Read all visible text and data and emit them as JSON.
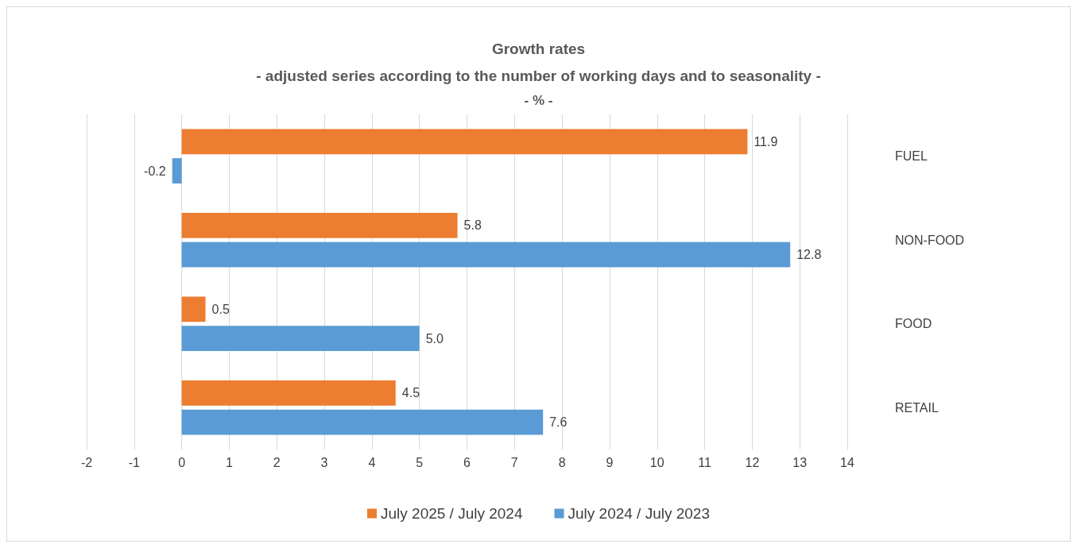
{
  "chart_data": {
    "type": "bar",
    "orientation": "horizontal",
    "title": "Growth rates",
    "subtitle": "- adjusted series according to the number of working days and to seasonality -",
    "annotations": [
      "- % -"
    ],
    "categories": [
      "FUEL",
      "NON-FOOD",
      "FOOD",
      "RETAIL"
    ],
    "series": [
      {
        "name": "July 2025 / July 2024",
        "color": "#ed7d31",
        "values": [
          11.9,
          5.8,
          0.5,
          4.5
        ],
        "value_labels": [
          "11.9",
          "5.8",
          "0.5",
          "4.5"
        ]
      },
      {
        "name": "July 2024 / July 2023",
        "color": "#5b9bd5",
        "values": [
          -0.2,
          12.8,
          5.0,
          7.6
        ],
        "value_labels": [
          "-0.2",
          "12.8",
          "5.0",
          "7.6"
        ]
      }
    ],
    "xlim": [
      -2,
      14
    ],
    "xticks": [
      -2,
      -1,
      0,
      1,
      2,
      3,
      4,
      5,
      6,
      7,
      8,
      9,
      10,
      11,
      12,
      13,
      14
    ],
    "grid": "x",
    "legend": "bottom"
  }
}
